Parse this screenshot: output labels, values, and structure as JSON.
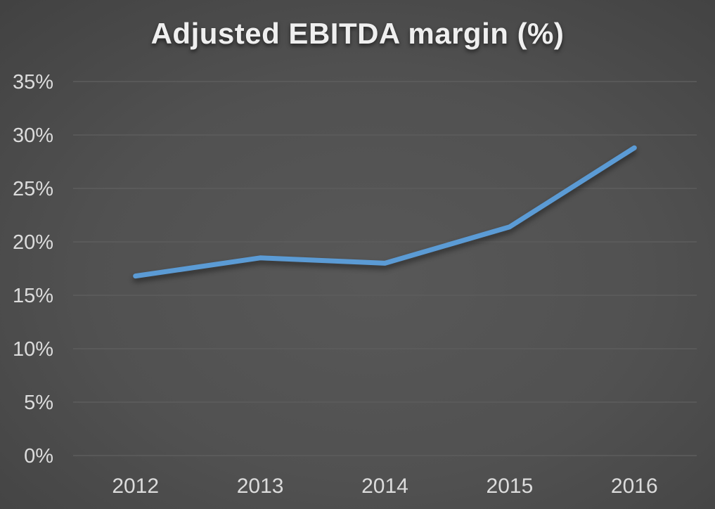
{
  "chart_data": {
    "type": "line",
    "title": "Adjusted EBITDA margin (%)",
    "categories": [
      "2012",
      "2013",
      "2014",
      "2015",
      "2016"
    ],
    "series": [
      {
        "name": "Adjusted EBITDA margin",
        "values": [
          16.8,
          18.5,
          18.0,
          21.4,
          28.8
        ]
      }
    ],
    "xlabel": "",
    "ylabel": "",
    "ylim": [
      0,
      35
    ],
    "ytick_step": 5,
    "ytick_labels": [
      "0%",
      "5%",
      "10%",
      "15%",
      "20%",
      "25%",
      "30%",
      "35%"
    ],
    "grid": true,
    "legend": "none",
    "colors": {
      "line": "#5B9BD5",
      "gridline": "#5d5d5d",
      "tick_text": "#dcdcdc",
      "title_text": "#efefef",
      "background_center": "#585858",
      "background_edge": "#1f1f1f"
    }
  }
}
